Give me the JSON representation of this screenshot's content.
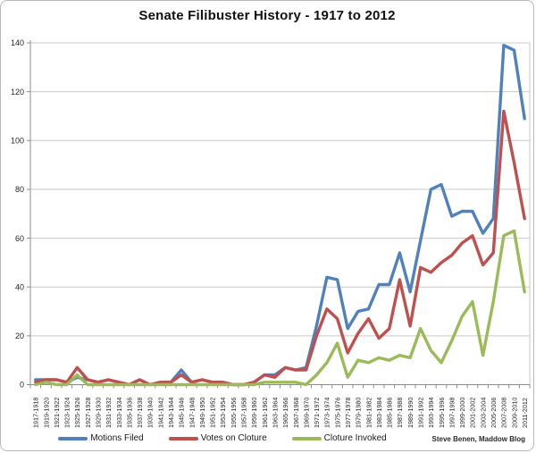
{
  "chart": {
    "title": "Senate Filibuster History - 1917 to 2012",
    "credit": "Steve Benen, Maddow Blog"
  },
  "chart_data": {
    "type": "line",
    "title": "Senate Filibuster History - 1917 to 2012",
    "xlabel": "",
    "ylabel": "",
    "ylim": [
      0,
      140
    ],
    "ytick_step": 20,
    "grid": true,
    "legend_position": "bottom",
    "categories": [
      "1917-1918",
      "1919-1920",
      "1921-1922",
      "1923-1924",
      "1925-1926",
      "1927-1928",
      "1929-1930",
      "1931-1932",
      "1933-1934",
      "1935-1936",
      "1937-1938",
      "1939-1940",
      "1941-1942",
      "1943-1944",
      "1945-1946",
      "1947-1948",
      "1949-1950",
      "1951-1952",
      "1953-1954",
      "1955-1956",
      "1957-1958",
      "1959-1960",
      "1961-1962",
      "1963-1964",
      "1965-1966",
      "1967-1968",
      "1969-1970",
      "1971-1972",
      "1973-1974",
      "1975-1976",
      "1977-1978",
      "1979-1980",
      "1981-1982",
      "1983-1984",
      "1985-1986",
      "1987-1988",
      "1989-1990",
      "1991-1992",
      "1993-1994",
      "1995-1996",
      "1997-1998",
      "1999-2000",
      "2001-2002",
      "2003-2004",
      "2005-2006",
      "2007-2008",
      "2009-2010",
      "2011-2012"
    ],
    "series": [
      {
        "name": "Motions Filed",
        "color": "#4F81BD",
        "values": [
          2,
          2,
          2,
          1,
          3,
          2,
          1,
          2,
          1,
          0,
          2,
          0,
          1,
          1,
          6,
          1,
          2,
          1,
          1,
          0,
          0,
          1,
          4,
          4,
          7,
          6,
          7,
          24,
          44,
          43,
          23,
          30,
          31,
          41,
          41,
          54,
          38,
          59,
          80,
          82,
          69,
          71,
          71,
          62,
          68,
          139,
          137,
          109
        ]
      },
      {
        "name": "Votes on Cloture",
        "color": "#C0504D",
        "values": [
          1,
          2,
          2,
          1,
          7,
          2,
          1,
          2,
          1,
          0,
          2,
          0,
          1,
          1,
          4,
          1,
          2,
          1,
          1,
          0,
          0,
          1,
          4,
          3,
          7,
          6,
          6,
          20,
          31,
          27,
          13,
          21,
          27,
          19,
          23,
          43,
          24,
          48,
          46,
          50,
          53,
          58,
          61,
          49,
          54,
          112,
          91,
          68
        ]
      },
      {
        "name": "Cloture Invoked",
        "color": "#9BBB59",
        "values": [
          0,
          1,
          0,
          0,
          4,
          0,
          0,
          0,
          0,
          0,
          0,
          0,
          0,
          0,
          0,
          0,
          0,
          0,
          0,
          0,
          0,
          0,
          1,
          1,
          1,
          1,
          0,
          4,
          9,
          17,
          3,
          10,
          9,
          11,
          10,
          12,
          11,
          23,
          14,
          9,
          18,
          28,
          34,
          12,
          34,
          61,
          63,
          38
        ]
      }
    ]
  },
  "style": {
    "gridline_color": "#c9c9c9",
    "axis_color": "#8c8c8c",
    "tick_label_color": "#262626"
  }
}
